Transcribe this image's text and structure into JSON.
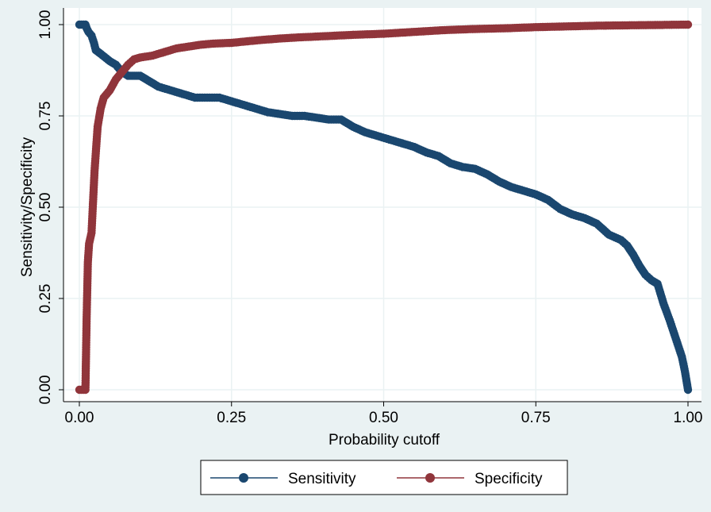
{
  "chart_data": {
    "type": "line",
    "title": "",
    "xlabel": "Probability cutoff",
    "ylabel": "Sensitivity/Specificity",
    "xlim": [
      0,
      1
    ],
    "ylim": [
      0,
      1
    ],
    "x_ticks": [
      "0.00",
      "0.25",
      "0.50",
      "0.75",
      "1.00"
    ],
    "y_ticks": [
      "0.00",
      "0.25",
      "0.50",
      "0.75",
      "1.00"
    ],
    "grid": true,
    "legend_position": "bottom",
    "series": [
      {
        "name": "Sensitivity",
        "color": "#1a476f",
        "marker": "circle",
        "points": [
          [
            0.0,
            1.0
          ],
          [
            0.01,
            1.0
          ],
          [
            0.012,
            0.99
          ],
          [
            0.015,
            0.98
          ],
          [
            0.02,
            0.97
          ],
          [
            0.024,
            0.95
          ],
          [
            0.027,
            0.93
          ],
          [
            0.035,
            0.92
          ],
          [
            0.05,
            0.9
          ],
          [
            0.06,
            0.89
          ],
          [
            0.07,
            0.87
          ],
          [
            0.08,
            0.86
          ],
          [
            0.09,
            0.86
          ],
          [
            0.1,
            0.86
          ],
          [
            0.11,
            0.85
          ],
          [
            0.12,
            0.84
          ],
          [
            0.13,
            0.83
          ],
          [
            0.15,
            0.82
          ],
          [
            0.17,
            0.81
          ],
          [
            0.19,
            0.8
          ],
          [
            0.21,
            0.8
          ],
          [
            0.23,
            0.8
          ],
          [
            0.25,
            0.79
          ],
          [
            0.27,
            0.78
          ],
          [
            0.29,
            0.77
          ],
          [
            0.31,
            0.76
          ],
          [
            0.33,
            0.755
          ],
          [
            0.35,
            0.75
          ],
          [
            0.37,
            0.75
          ],
          [
            0.39,
            0.745
          ],
          [
            0.41,
            0.74
          ],
          [
            0.43,
            0.74
          ],
          [
            0.45,
            0.72
          ],
          [
            0.47,
            0.705
          ],
          [
            0.49,
            0.695
          ],
          [
            0.51,
            0.685
          ],
          [
            0.53,
            0.675
          ],
          [
            0.55,
            0.665
          ],
          [
            0.57,
            0.65
          ],
          [
            0.59,
            0.64
          ],
          [
            0.61,
            0.62
          ],
          [
            0.63,
            0.61
          ],
          [
            0.65,
            0.605
          ],
          [
            0.67,
            0.59
          ],
          [
            0.69,
            0.57
          ],
          [
            0.71,
            0.555
          ],
          [
            0.73,
            0.545
          ],
          [
            0.75,
            0.535
          ],
          [
            0.77,
            0.52
          ],
          [
            0.79,
            0.495
          ],
          [
            0.81,
            0.48
          ],
          [
            0.83,
            0.47
          ],
          [
            0.85,
            0.455
          ],
          [
            0.87,
            0.425
          ],
          [
            0.89,
            0.41
          ],
          [
            0.9,
            0.395
          ],
          [
            0.91,
            0.37
          ],
          [
            0.92,
            0.34
          ],
          [
            0.93,
            0.315
          ],
          [
            0.94,
            0.3
          ],
          [
            0.95,
            0.29
          ],
          [
            0.96,
            0.235
          ],
          [
            0.97,
            0.19
          ],
          [
            0.98,
            0.14
          ],
          [
            0.99,
            0.09
          ],
          [
            0.995,
            0.05
          ],
          [
            1.0,
            0.0
          ]
        ]
      },
      {
        "name": "Specificity",
        "color": "#90353b",
        "marker": "circle",
        "points": [
          [
            0.0,
            0.0
          ],
          [
            0.01,
            0.0
          ],
          [
            0.012,
            0.2
          ],
          [
            0.014,
            0.35
          ],
          [
            0.016,
            0.4
          ],
          [
            0.02,
            0.43
          ],
          [
            0.025,
            0.6
          ],
          [
            0.03,
            0.72
          ],
          [
            0.035,
            0.77
          ],
          [
            0.04,
            0.8
          ],
          [
            0.05,
            0.82
          ],
          [
            0.06,
            0.85
          ],
          [
            0.07,
            0.87
          ],
          [
            0.08,
            0.89
          ],
          [
            0.09,
            0.905
          ],
          [
            0.1,
            0.91
          ],
          [
            0.12,
            0.915
          ],
          [
            0.14,
            0.925
          ],
          [
            0.16,
            0.935
          ],
          [
            0.18,
            0.94
          ],
          [
            0.2,
            0.945
          ],
          [
            0.22,
            0.948
          ],
          [
            0.25,
            0.95
          ],
          [
            0.28,
            0.955
          ],
          [
            0.3,
            0.958
          ],
          [
            0.33,
            0.962
          ],
          [
            0.36,
            0.965
          ],
          [
            0.4,
            0.968
          ],
          [
            0.45,
            0.972
          ],
          [
            0.5,
            0.975
          ],
          [
            0.55,
            0.98
          ],
          [
            0.6,
            0.985
          ],
          [
            0.65,
            0.988
          ],
          [
            0.7,
            0.99
          ],
          [
            0.75,
            0.993
          ],
          [
            0.8,
            0.995
          ],
          [
            0.85,
            0.997
          ],
          [
            0.9,
            0.998
          ],
          [
            0.95,
            0.999
          ],
          [
            1.0,
            1.0
          ]
        ]
      }
    ]
  }
}
